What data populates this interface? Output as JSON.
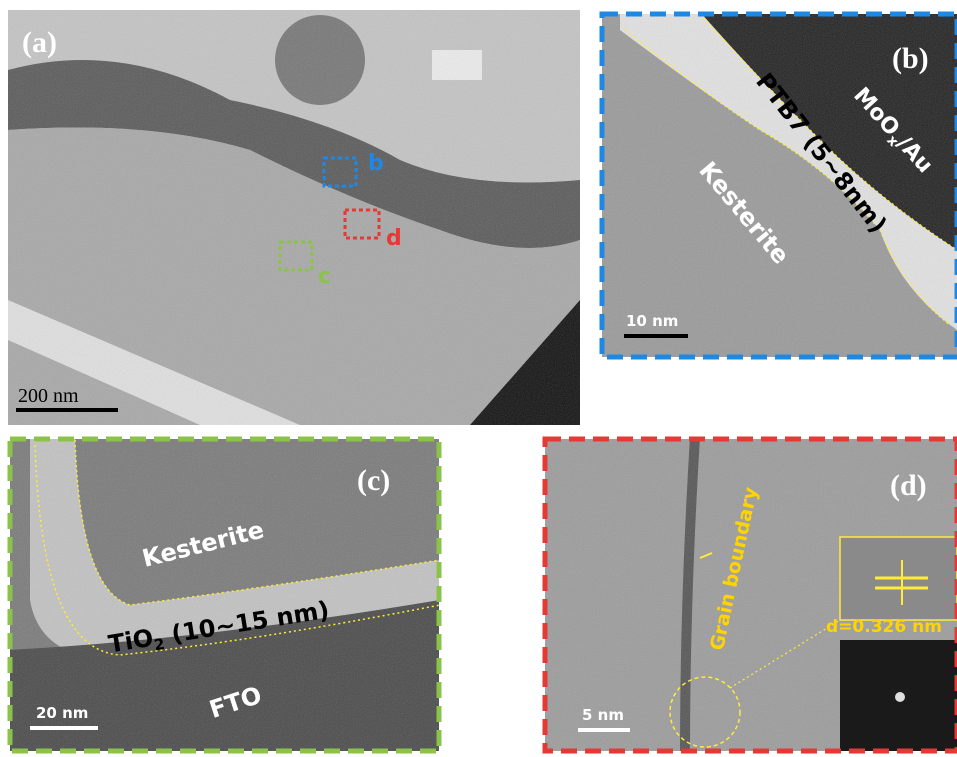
{
  "panel_a": {
    "label": "(a)",
    "scale_bar": "200 nm",
    "marker_b": "b",
    "marker_c": "c",
    "marker_d": "d"
  },
  "panel_b": {
    "label": "(b)",
    "scale_bar": "10 nm",
    "layer_label": "PTB7 (5~8nm)",
    "top_label": {
      "main": "MoO",
      "sub": "x",
      "rest": "/Au"
    },
    "region_label": "Kesterite"
  },
  "panel_c": {
    "label": "(c)",
    "scale_bar": "20 nm",
    "region_label": "Kesterite",
    "layer_label": {
      "main": "TiO",
      "sub": "2",
      "rest": " (10~15 nm)"
    },
    "substrate_label": "FTO"
  },
  "panel_d": {
    "label": "(d)",
    "scale_bar": "5 nm",
    "boundary_label": "Grain boundary",
    "spacing_label": "d=0.326 nm"
  }
}
